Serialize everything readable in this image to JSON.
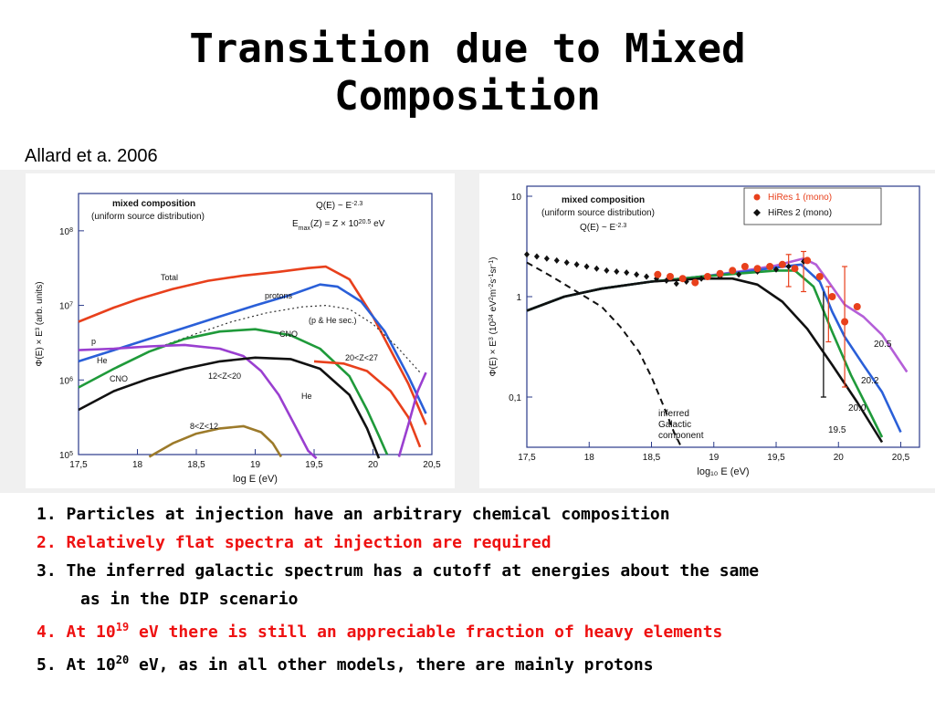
{
  "slide": {
    "title_line1": "Transition due to Mixed",
    "title_line2": "Composition",
    "citation": "Allard et a. 2006"
  },
  "points": [
    {
      "num": "1.",
      "text": "Particles at injection have an arbitrary chemical composition",
      "color": "#000000"
    },
    {
      "num": "2.",
      "text": "Relatively flat spectra at injection are required",
      "color": "#ee1111"
    },
    {
      "num": "3.",
      "text": "The inferred galactic spectrum has a cutoff at energies about the same",
      "cont": "as in the DIP scenario",
      "color": "#000000"
    },
    {
      "num": "4.",
      "pre": "At 10",
      "sup": "19",
      "post": " eV there is still an appreciable fraction of heavy elements",
      "color": "#ee1111"
    },
    {
      "num": "5.",
      "pre": "At 10",
      "sup": "20",
      "post": " eV, as in all other models, there are mainly protons",
      "color": "#000000"
    }
  ],
  "chart_data": [
    {
      "type": "line",
      "title": "mixed composition",
      "subtitle": "(uniform source distribution)",
      "formula_q": "Q(E) ~ E",
      "formula_q_exp": "-2.3",
      "formula_emax": "E",
      "formula_emax_sub": "max",
      "formula_emax_rest": "(Z) = Z × 10",
      "formula_emax_exp": "20.5",
      "formula_emax_unit": "eV",
      "xlabel": "log E (eV)",
      "ylabel": "Φ(E) × E³ (arb. units)",
      "xlim": [
        17.5,
        20.5
      ],
      "ylim": [
        5,
        8.5
      ],
      "log_y": true,
      "x_ticks": [
        "17,5",
        "18",
        "18,5",
        "19",
        "19,5",
        "20",
        "20,5"
      ],
      "y_ticks": [
        {
          "base": "10",
          "exp": "5",
          "v": 5
        },
        {
          "base": "10",
          "exp": "6",
          "v": 6
        },
        {
          "base": "10",
          "exp": "7",
          "v": 7
        },
        {
          "base": "10",
          "exp": "8",
          "v": 8
        }
      ],
      "series": [
        {
          "name": "Total",
          "color": "#e8401c",
          "dash": "",
          "x": [
            17.5,
            17.8,
            18.0,
            18.3,
            18.6,
            18.9,
            19.2,
            19.45,
            19.6,
            19.8,
            20.0,
            20.15,
            20.3,
            20.45
          ],
          "y": [
            6.78,
            6.97,
            7.08,
            7.22,
            7.33,
            7.4,
            7.45,
            7.5,
            7.52,
            7.35,
            6.85,
            6.4,
            5.95,
            5.4
          ]
        },
        {
          "name": "protons",
          "color": "#2a5fd8",
          "dash": "",
          "x": [
            17.5,
            17.8,
            18.1,
            18.4,
            18.7,
            19.0,
            19.3,
            19.55,
            19.7,
            19.9,
            20.1,
            20.3,
            20.45
          ],
          "y": [
            6.25,
            6.4,
            6.55,
            6.7,
            6.85,
            7.0,
            7.14,
            7.28,
            7.25,
            7.05,
            6.65,
            6.05,
            5.55
          ]
        },
        {
          "name": "(p & He sec.)",
          "color": "#333333",
          "dash": "2,3",
          "x": [
            18.2,
            18.5,
            18.8,
            19.1,
            19.4,
            19.6,
            19.8,
            20.0,
            20.2,
            20.4
          ],
          "y": [
            6.45,
            6.62,
            6.78,
            6.9,
            6.98,
            7.0,
            6.95,
            6.75,
            6.45,
            6.1
          ]
        },
        {
          "name": "CNO",
          "color": "#1f9a3a",
          "dash": "",
          "x": [
            17.5,
            17.8,
            18.1,
            18.4,
            18.7,
            19.0,
            19.3,
            19.55,
            19.8,
            19.95,
            20.05,
            20.12
          ],
          "y": [
            5.9,
            6.15,
            6.38,
            6.55,
            6.65,
            6.68,
            6.6,
            6.42,
            6.05,
            5.6,
            5.25,
            5.0
          ]
        },
        {
          "name": "He",
          "color": "#9a3fd0",
          "dash": "",
          "x": [
            17.5,
            17.8,
            18.1,
            18.4,
            18.7,
            18.9,
            19.05,
            19.2,
            19.35,
            19.45,
            19.52
          ],
          "y": [
            6.4,
            6.42,
            6.45,
            6.47,
            6.42,
            6.32,
            6.12,
            5.8,
            5.35,
            5.05,
            4.95
          ]
        },
        {
          "name": "12<Z<20",
          "color": "#111111",
          "dash": "",
          "x": [
            17.5,
            17.8,
            18.1,
            18.4,
            18.7,
            19.0,
            19.3,
            19.55,
            19.8,
            19.95,
            20.05
          ],
          "y": [
            5.6,
            5.85,
            6.02,
            6.15,
            6.25,
            6.3,
            6.28,
            6.15,
            5.8,
            5.35,
            4.95
          ]
        },
        {
          "name": "8<Z<12",
          "color": "#9c7a2a",
          "dash": "",
          "x": [
            18.1,
            18.3,
            18.5,
            18.7,
            18.9,
            19.05,
            19.15,
            19.22
          ],
          "y": [
            4.97,
            5.15,
            5.28,
            5.35,
            5.38,
            5.3,
            5.15,
            4.97
          ]
        },
        {
          "name": "20<Z<27",
          "color": "#e8401c",
          "dash": "",
          "x": [
            19.5,
            19.75,
            19.95,
            20.15,
            20.3,
            20.4
          ],
          "y": [
            6.25,
            6.22,
            6.12,
            5.85,
            5.5,
            5.1
          ]
        },
        {
          "name": "",
          "color": "#9a3fd0",
          "dash": "",
          "x": [
            20.22,
            20.3,
            20.38,
            20.45
          ],
          "y": [
            4.97,
            5.4,
            5.85,
            6.1
          ]
        }
      ],
      "labels": [
        "Total",
        "protons",
        "(p & He sec.)",
        "CNO",
        "20<Z<27",
        "p",
        "He",
        "CNO",
        "12<Z<20",
        "He",
        "8<Z<12"
      ]
    },
    {
      "type": "line",
      "title": "mixed composition",
      "subtitle": "(uniform source distribution)",
      "formula_q": "Q(E) ~ E",
      "formula_q_exp": "-2.3",
      "xlabel": "log₁₀ E (eV)",
      "ylabel_pre": "Φ(E) × E",
      "ylabel_exp": "3",
      "ylabel_post": " (10",
      "ylabel_exp2": "24",
      "ylabel_unit": " eV",
      "ylabel_exp3": "2",
      "ylabel_unit2": "m",
      "ylabel_exp4": "-2",
      "ylabel_unit3": "s",
      "ylabel_exp5": "-1",
      "ylabel_unit4": "sr",
      "ylabel_exp6": "-1",
      "ylabel_close": ")",
      "xlim": [
        17.5,
        20.65
      ],
      "ylim": [
        -1.5,
        1.1
      ],
      "log_y": true,
      "x_ticks": [
        "17,5",
        "18",
        "18,5",
        "19",
        "19,5",
        "20",
        "20,5"
      ],
      "y_ticks": [
        {
          "label": "10",
          "v": 1
        },
        {
          "label": "1",
          "v": 0
        },
        {
          "label": "0,1",
          "v": -1
        }
      ],
      "legend_position": "top-right",
      "legend": [
        {
          "name": "HiRes 1 (mono)",
          "color": "#e8401c",
          "marker": "circle",
          "textcolor": "#e8401c"
        },
        {
          "name": "HiRes 2 (mono)",
          "color": "#111111",
          "marker": "diamond",
          "textcolor": "#111111"
        }
      ],
      "series": [
        {
          "name": "20.5",
          "color": "#b45fd8",
          "dash": "",
          "x": [
            17.5,
            17.8,
            18.1,
            18.5,
            18.9,
            19.2,
            19.5,
            19.72,
            19.82,
            19.92,
            20.05,
            20.2,
            20.35,
            20.55
          ],
          "y": [
            -0.14,
            0.0,
            0.08,
            0.15,
            0.2,
            0.25,
            0.31,
            0.38,
            0.32,
            0.15,
            -0.08,
            -0.2,
            -0.38,
            -0.75
          ]
        },
        {
          "name": "20.2",
          "color": "#2a5fd8",
          "dash": "",
          "x": [
            17.5,
            17.8,
            18.1,
            18.5,
            18.9,
            19.2,
            19.5,
            19.7,
            19.85,
            19.95,
            20.05,
            20.2,
            20.35,
            20.5
          ],
          "y": [
            -0.14,
            0.0,
            0.08,
            0.15,
            0.2,
            0.24,
            0.29,
            0.32,
            0.15,
            -0.15,
            -0.4,
            -0.68,
            -0.95,
            -1.35
          ]
        },
        {
          "name": "20.0",
          "color": "#1f9a3a",
          "dash": "",
          "x": [
            17.5,
            17.8,
            18.1,
            18.5,
            18.9,
            19.2,
            19.5,
            19.65,
            19.8,
            19.95,
            20.1,
            20.25,
            20.35
          ],
          "y": [
            -0.14,
            0.0,
            0.08,
            0.15,
            0.2,
            0.23,
            0.26,
            0.26,
            0.1,
            -0.35,
            -0.78,
            -1.15,
            -1.4
          ]
        },
        {
          "name": "19.5",
          "color": "#111111",
          "dash": "",
          "x": [
            17.5,
            17.8,
            18.1,
            18.5,
            18.9,
            19.15,
            19.35,
            19.55,
            19.75,
            19.95,
            20.15,
            20.35
          ],
          "y": [
            -0.14,
            0.0,
            0.08,
            0.15,
            0.18,
            0.18,
            0.12,
            -0.05,
            -0.32,
            -0.68,
            -1.05,
            -1.45
          ]
        },
        {
          "name": "inferred Galactic component",
          "color": "#111111",
          "dash": "7,5",
          "x": [
            17.5,
            17.7,
            17.9,
            18.1,
            18.25,
            18.4,
            18.5,
            18.6,
            18.68,
            18.74
          ],
          "y": [
            0.34,
            0.2,
            0.05,
            -0.1,
            -0.3,
            -0.55,
            -0.8,
            -1.1,
            -1.35,
            -1.5
          ]
        }
      ],
      "hires2_points": {
        "x": [
          17.5,
          17.58,
          17.66,
          17.74,
          17.82,
          17.9,
          17.98,
          18.06,
          18.14,
          18.22,
          18.3,
          18.38,
          18.46,
          18.54,
          18.62,
          18.7,
          18.78,
          18.9,
          19.05,
          19.2,
          19.35,
          19.5,
          19.6,
          19.72
        ],
        "y": [
          0.42,
          0.4,
          0.38,
          0.36,
          0.34,
          0.32,
          0.3,
          0.28,
          0.26,
          0.25,
          0.24,
          0.22,
          0.2,
          0.18,
          0.16,
          0.13,
          0.15,
          0.18,
          0.2,
          0.22,
          0.25,
          0.27,
          0.3,
          0.35
        ]
      },
      "hires1_points": {
        "x": [
          18.55,
          18.65,
          18.75,
          18.85,
          18.95,
          19.05,
          19.15,
          19.25,
          19.35,
          19.45,
          19.55,
          19.65,
          19.75,
          19.85,
          19.95,
          20.05,
          20.15
        ],
        "y": [
          0.22,
          0.2,
          0.18,
          0.14,
          0.2,
          0.23,
          0.26,
          0.3,
          0.28,
          0.3,
          0.32,
          0.28,
          0.36,
          0.2,
          0.0,
          -0.25,
          -0.1
        ]
      },
      "hires1_errors": [
        {
          "x": 19.6,
          "lo": 0.1,
          "hi": 0.42
        },
        {
          "x": 19.72,
          "lo": 0.05,
          "hi": 0.45
        },
        {
          "x": 19.92,
          "lo": -0.45,
          "hi": 0.1
        },
        {
          "x": 20.05,
          "lo": -0.9,
          "hi": 0.3
        }
      ],
      "hires2_errors": [
        {
          "x": 19.88,
          "lo": -1.0,
          "hi": 0.05
        }
      ],
      "labels": [
        "20.5",
        "20.2",
        "20.0",
        "19.5",
        "inferred",
        "Galactic",
        "component"
      ]
    }
  ]
}
